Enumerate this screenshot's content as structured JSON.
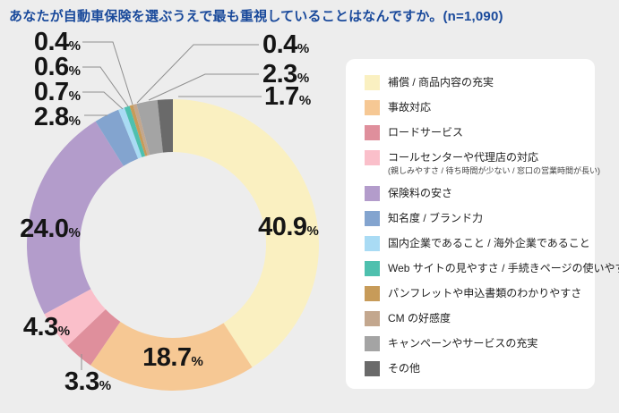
{
  "page": {
    "background": "#EDEDED"
  },
  "header": {
    "title": "あなたが自動車保険を選ぶうえで最も重視していることはなんですか。(n=1,090)",
    "title_color": "#19499B"
  },
  "chart_data": {
    "type": "pie",
    "donut": true,
    "title": "あなたが自動車保険を選ぶうえで最も重視していることはなんですか。",
    "sample_size": "n=1,090",
    "unit": "%",
    "legend_position": "right",
    "start_angle_deg": 0,
    "direction": "clockwise",
    "series": [
      {
        "label": "補償 / 商品内容の充実",
        "value": 40.9,
        "color": "#FAF0C1"
      },
      {
        "label": "事故対応",
        "value": 18.7,
        "color": "#F6C894"
      },
      {
        "label": "ロードサービス",
        "value": 3.3,
        "color": "#DF8F9C"
      },
      {
        "label": "コールセンターや代理店の対応",
        "sublabel": "(親しみやすさ / 待ち時間が少ない / 窓口の営業時間が長い)",
        "value": 4.3,
        "color": "#FABFCA"
      },
      {
        "label": "保険料の安さ",
        "value": 24.0,
        "color": "#B39CCB"
      },
      {
        "label": "知名度 / ブランド力",
        "value": 2.8,
        "color": "#83A4CF"
      },
      {
        "label": "国内企業であること / 海外企業であること",
        "value": 0.7,
        "color": "#A9DBF4"
      },
      {
        "label": "Web サイトの見やすさ / 手続きページの使いやすさ",
        "value": 0.6,
        "color": "#4EC0AE"
      },
      {
        "label": "パンフレットや申込書類のわかりやすさ",
        "value": 0.4,
        "color": "#C79B59"
      },
      {
        "label": "CM の好感度",
        "value": 0.4,
        "color": "#C3A78E"
      },
      {
        "label": "キャンペーンやサービスの充実",
        "value": 2.3,
        "color": "#A4A4A4"
      },
      {
        "label": "その他",
        "value": 1.7,
        "color": "#6A6A6A"
      }
    ]
  }
}
